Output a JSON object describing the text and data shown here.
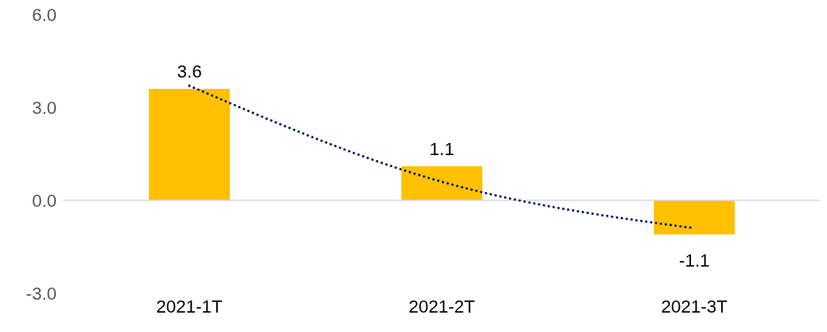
{
  "chart_data": {
    "type": "bar",
    "categories": [
      "2021-1T",
      "2021-2T",
      "2021-3T"
    ],
    "series": [
      {
        "color": "#ffc000",
        "values": [
          3.6,
          1.1,
          -1.1
        ],
        "value_labels": [
          "3.6",
          "1.1",
          "-1.1"
        ]
      },
      {
        "type": "line",
        "color": "#002060",
        "line_style": "dotted",
        "x": [
          "2021-1T",
          "2021-2T",
          "2021-3T"
        ],
        "values": [
          3.7,
          0.6,
          -0.9
        ]
      }
    ],
    "ylim": [
      -3,
      6
    ],
    "yticks": [
      {
        "value": -3,
        "label": "-3.0"
      },
      {
        "value": 0,
        "label": "0.0"
      },
      {
        "value": 3,
        "label": "3.0"
      },
      {
        "value": 6,
        "label": "6.0"
      }
    ],
    "ref_lines": [
      {
        "axis": "y",
        "value": 0,
        "color": "#d9d9d9"
      }
    ]
  }
}
